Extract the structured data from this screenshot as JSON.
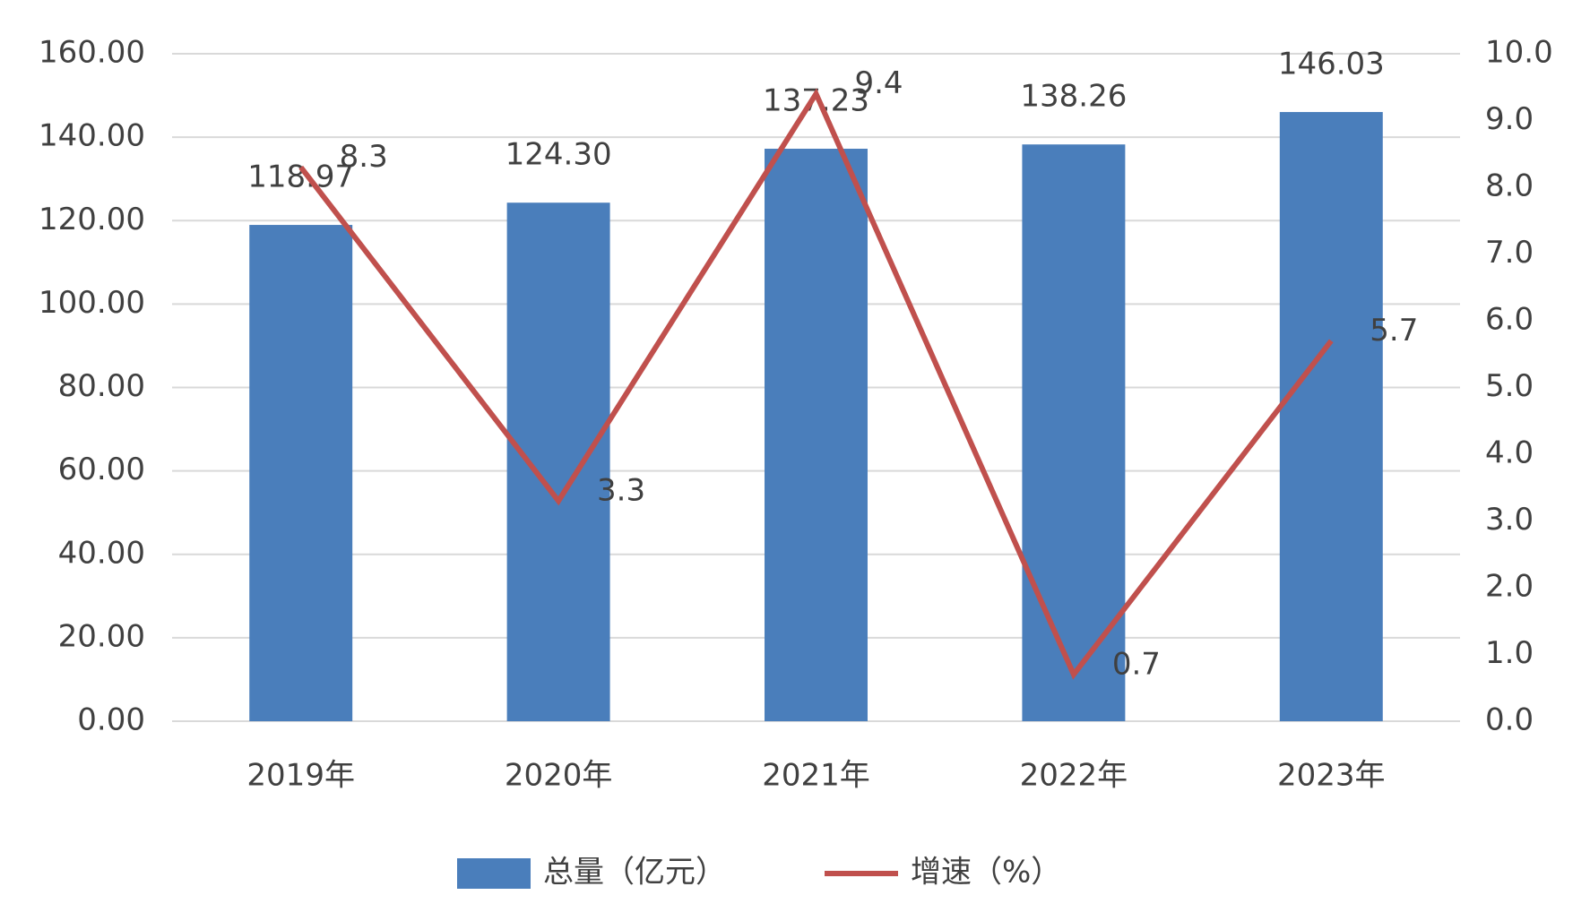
{
  "chart_data": {
    "type": "bar-line",
    "categories": [
      "2019年",
      "2020年",
      "2021年",
      "2022年",
      "2023年"
    ],
    "series": [
      {
        "name": "总量（亿元）",
        "type": "bar",
        "color": "#4a7ebb",
        "values": [
          118.97,
          124.3,
          137.23,
          138.26,
          146.03
        ],
        "value_labels": [
          "118.97",
          "124.30",
          "137.23",
          "138.26",
          "146.03"
        ]
      },
      {
        "name": "增速（%）",
        "type": "line",
        "axis": "y2",
        "color": "#c0504d",
        "values": [
          8.3,
          3.3,
          9.4,
          0.7,
          5.7
        ]
      }
    ],
    "ylim": [
      0,
      160
    ],
    "yticks": [
      {
        "value": 0,
        "label": "0.00"
      },
      {
        "value": 20,
        "label": "20.00"
      },
      {
        "value": 40,
        "label": "40.00"
      },
      {
        "value": 60,
        "label": "60.00"
      },
      {
        "value": 80,
        "label": "80.00"
      },
      {
        "value": 100,
        "label": "100.00"
      },
      {
        "value": 120,
        "label": "120.00"
      },
      {
        "value": 140,
        "label": "140.00"
      },
      {
        "value": 160,
        "label": "160.00"
      }
    ],
    "y2lim": [
      0,
      10
    ],
    "y2ticks": [
      {
        "value": 0,
        "label": "0.0"
      },
      {
        "value": 1,
        "label": "1.0"
      },
      {
        "value": 2,
        "label": "2.0"
      },
      {
        "value": 3,
        "label": "3.0"
      },
      {
        "value": 4,
        "label": "4.0"
      },
      {
        "value": 5,
        "label": "5.0"
      },
      {
        "value": 6,
        "label": "6.0"
      },
      {
        "value": 7,
        "label": "7.0"
      },
      {
        "value": 8,
        "label": "8.0"
      },
      {
        "value": 9,
        "label": "9.0"
      },
      {
        "value": 10,
        "label": "10.0"
      }
    ],
    "grid": true,
    "legend": "bottom"
  }
}
